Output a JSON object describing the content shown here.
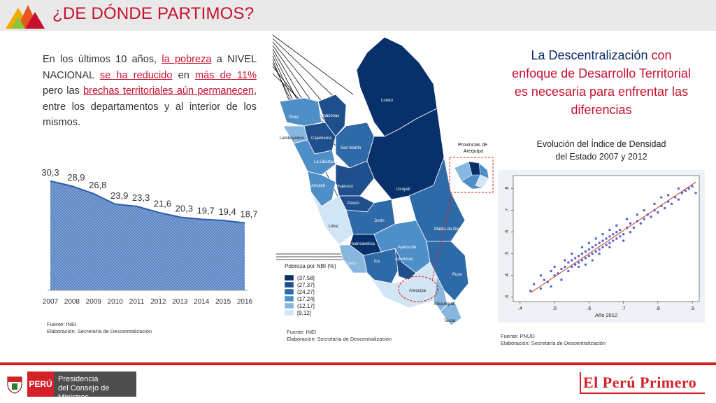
{
  "header": {
    "title": "¿DE DÓNDE PARTIMOS?"
  },
  "intro": {
    "p1": "En los últimos 10 años, ",
    "p2": "la pobreza",
    "p3": " a NIVEL NACIONAL ",
    "p4": "se ha reducido",
    "p5": " en ",
    "p6": "más de 11%",
    "p7": " pero las ",
    "p8": "brechas territoriales aún permanecen",
    "p9": ", entre los departamentos y al interior de los mismos."
  },
  "poverty_source": {
    "line1": "Fuente: INEI",
    "line2": "Elaboración: Secretaría de Descentralización"
  },
  "map_source": {
    "line1": "Fuente: INEI",
    "line2": "Elaboración: Secretaría de Descentralización"
  },
  "scatter_source": {
    "line1": "Fuente: PNUD",
    "line2": "Elaboración: Secretaría de Descentralización"
  },
  "headline": {
    "part1": "La Descentralización ",
    "part2": "con enfoque de Desarrollo Territorial es necesaria para enfrentar las diferencias"
  },
  "scatter_title": {
    "line1": "Evolución del Índice de Densidad",
    "line2": "del Estado 2007 y 2012"
  },
  "map": {
    "inset_title": "Provincias de Arequipa",
    "legend_title": "Pobreza por NBI (%)",
    "legend": [
      {
        "label": "(37,58]",
        "color": "#08306b"
      },
      {
        "label": "(27,37]",
        "color": "#1f4e8c"
      },
      {
        "label": "(24,27]",
        "color": "#2f6aa8"
      },
      {
        "label": "(17,24]",
        "color": "#4f8fc7"
      },
      {
        "label": "(12,17]",
        "color": "#87b6de"
      },
      {
        "label": "[9,12]",
        "color": "#d2e5f4"
      }
    ],
    "regions": [
      "Loreto",
      "Piura",
      "Amazonas",
      "Lambayeque",
      "Cajamarca",
      "San Martín",
      "La Libertad",
      "Ancash",
      "Huánuco",
      "Ucayali",
      "Pasco",
      "Lima",
      "Junín",
      "Madre de Dios",
      "Huancavelica",
      "Cusco",
      "Ica",
      "Ayacucho",
      "Apurímac",
      "Puno",
      "Arequipa",
      "Moquegua",
      "Tacna"
    ]
  },
  "chart_data": [
    {
      "type": "area",
      "title": "",
      "categories": [
        "2007",
        "2008",
        "2009",
        "2010",
        "2011",
        "2012",
        "2013",
        "2014",
        "2015",
        "2016"
      ],
      "values": [
        30.3,
        28.9,
        26.8,
        23.9,
        23.3,
        21.6,
        20.3,
        19.7,
        19.4,
        18.7
      ],
      "value_labels": [
        "30,3",
        "28,9",
        "26,8",
        "23,9",
        "23,3",
        "21,6",
        "20,3",
        "19,7",
        "19,4",
        "18,7"
      ],
      "ylim": [
        0,
        32
      ],
      "color": "#2e5da8"
    },
    {
      "type": "scatter",
      "title": "Evolución del Índice de Densidad del Estado 2007 y 2012",
      "xlabel": "Año 2012",
      "ylabel": "",
      "xlim": [
        0.38,
        0.92
      ],
      "ylim": [
        0.28,
        0.86
      ],
      "x_ticks": [
        ".4",
        ".5",
        ".6",
        ".7",
        ".8",
        ".9"
      ],
      "y_ticks": [
        ".3",
        ".4",
        ".5",
        ".6",
        ".7",
        ".8"
      ],
      "series": [
        {
          "points": [
            [
              0.43,
              0.33
            ],
            [
              0.44,
              0.36
            ],
            [
              0.46,
              0.34
            ],
            [
              0.47,
              0.38
            ],
            [
              0.48,
              0.37
            ],
            [
              0.49,
              0.35
            ],
            [
              0.5,
              0.4
            ],
            [
              0.51,
              0.41
            ],
            [
              0.52,
              0.38
            ],
            [
              0.52,
              0.43
            ],
            [
              0.53,
              0.44
            ],
            [
              0.54,
              0.42
            ],
            [
              0.54,
              0.46
            ],
            [
              0.55,
              0.44
            ],
            [
              0.55,
              0.47
            ],
            [
              0.56,
              0.45
            ],
            [
              0.56,
              0.48
            ],
            [
              0.57,
              0.46
            ],
            [
              0.57,
              0.49
            ],
            [
              0.58,
              0.47
            ],
            [
              0.58,
              0.5
            ],
            [
              0.59,
              0.48
            ],
            [
              0.59,
              0.51
            ],
            [
              0.6,
              0.49
            ],
            [
              0.6,
              0.52
            ],
            [
              0.61,
              0.5
            ],
            [
              0.61,
              0.53
            ],
            [
              0.62,
              0.51
            ],
            [
              0.62,
              0.54
            ],
            [
              0.63,
              0.52
            ],
            [
              0.63,
              0.55
            ],
            [
              0.64,
              0.53
            ],
            [
              0.64,
              0.56
            ],
            [
              0.65,
              0.54
            ],
            [
              0.65,
              0.57
            ],
            [
              0.66,
              0.55
            ],
            [
              0.66,
              0.58
            ],
            [
              0.67,
              0.56
            ],
            [
              0.67,
              0.59
            ],
            [
              0.68,
              0.57
            ],
            [
              0.68,
              0.6
            ],
            [
              0.69,
              0.58
            ],
            [
              0.69,
              0.61
            ],
            [
              0.7,
              0.59
            ],
            [
              0.71,
              0.62
            ],
            [
              0.72,
              0.6
            ],
            [
              0.72,
              0.64
            ],
            [
              0.73,
              0.62
            ],
            [
              0.74,
              0.65
            ],
            [
              0.75,
              0.64
            ],
            [
              0.76,
              0.66
            ],
            [
              0.77,
              0.68
            ],
            [
              0.78,
              0.67
            ],
            [
              0.79,
              0.7
            ],
            [
              0.8,
              0.69
            ],
            [
              0.81,
              0.72
            ],
            [
              0.82,
              0.71
            ],
            [
              0.83,
              0.74
            ],
            [
              0.84,
              0.73
            ],
            [
              0.85,
              0.76
            ],
            [
              0.86,
              0.75
            ],
            [
              0.87,
              0.78
            ],
            [
              0.88,
              0.79
            ],
            [
              0.89,
              0.8
            ],
            [
              0.9,
              0.81
            ],
            [
              0.91,
              0.78
            ],
            [
              0.57,
              0.44
            ],
            [
              0.61,
              0.47
            ],
            [
              0.63,
              0.5
            ],
            [
              0.66,
              0.53
            ],
            [
              0.7,
              0.56
            ],
            [
              0.53,
              0.47
            ],
            [
              0.58,
              0.53
            ],
            [
              0.64,
              0.59
            ],
            [
              0.68,
              0.63
            ],
            [
              0.74,
              0.68
            ],
            [
              0.79,
              0.73
            ],
            [
              0.83,
              0.77
            ],
            [
              0.6,
              0.55
            ],
            [
              0.55,
              0.5
            ],
            [
              0.5,
              0.44
            ],
            [
              0.46,
              0.4
            ],
            [
              0.62,
              0.57
            ],
            [
              0.66,
              0.61
            ],
            [
              0.71,
              0.66
            ],
            [
              0.76,
              0.7
            ],
            [
              0.81,
              0.76
            ],
            [
              0.86,
              0.8
            ],
            [
              0.49,
              0.42
            ],
            [
              0.59,
              0.45
            ]
          ]
        }
      ],
      "fit_line": [
        [
          0.43,
          0.32
        ],
        [
          0.91,
          0.83
        ]
      ],
      "point_color": "#5566cc",
      "line_color": "#c0392b"
    }
  ],
  "footer": {
    "gov_peru": "PERÚ",
    "gov_line1": "Presidencia",
    "gov_line2": "del Consejo de Ministros",
    "brand": "El Perú Primero"
  }
}
